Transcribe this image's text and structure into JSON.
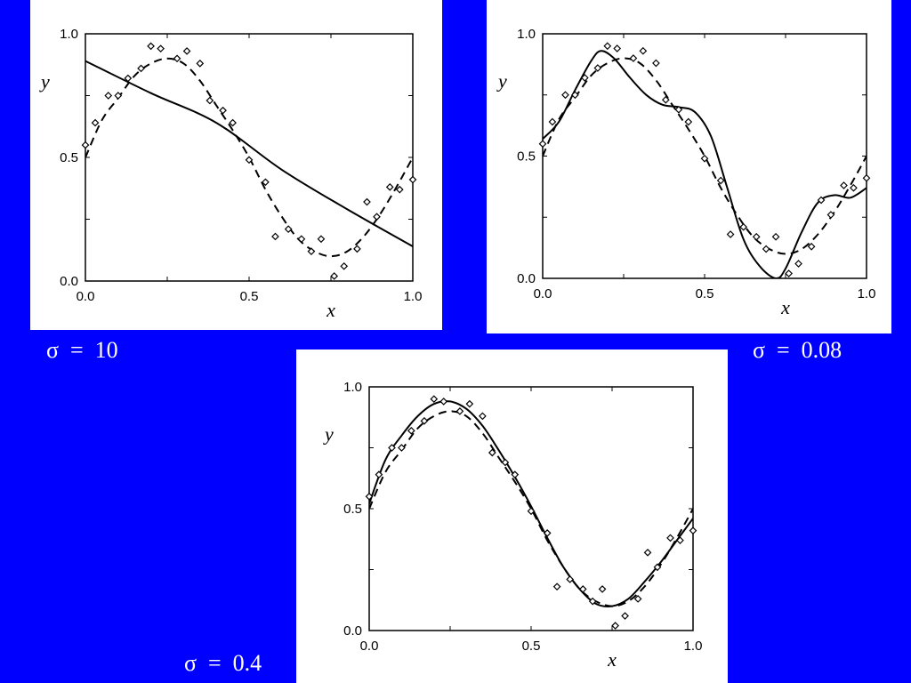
{
  "colors": {
    "background": "#0000ff",
    "panel": "#ffffff",
    "ink": "#000000",
    "label": "#ffffff"
  },
  "panels": [
    {
      "sigma_label": "σ  =  10"
    },
    {
      "sigma_label": "σ  =  0.08"
    },
    {
      "sigma_label": "σ  =  0.4"
    }
  ],
  "chart_data": [
    {
      "type": "line",
      "title": "",
      "xlabel": "x",
      "ylabel": "y",
      "xlim": [
        0.0,
        1.0
      ],
      "ylim": [
        0.0,
        1.0
      ],
      "xticks": [
        "0.0",
        "0.5",
        "1.0"
      ],
      "yticks": [
        "0.0",
        "0.5",
        "1.0"
      ],
      "grid": false,
      "points": {
        "x": [
          0.0,
          0.03,
          0.07,
          0.1,
          0.13,
          0.17,
          0.2,
          0.23,
          0.28,
          0.31,
          0.35,
          0.38,
          0.42,
          0.45,
          0.5,
          0.55,
          0.58,
          0.62,
          0.66,
          0.69,
          0.72,
          0.76,
          0.79,
          0.83,
          0.86,
          0.89,
          0.93,
          0.96,
          1.0
        ],
        "y": [
          0.55,
          0.64,
          0.75,
          0.75,
          0.82,
          0.86,
          0.95,
          0.94,
          0.9,
          0.93,
          0.88,
          0.73,
          0.69,
          0.64,
          0.49,
          0.4,
          0.18,
          0.21,
          0.17,
          0.12,
          0.17,
          0.02,
          0.06,
          0.13,
          0.32,
          0.26,
          0.38,
          0.37,
          0.41
        ]
      },
      "series": [
        {
          "style": "solid",
          "x": [
            0.0,
            0.2,
            0.4,
            0.6,
            0.8,
            1.0
          ],
          "y": [
            0.89,
            0.76,
            0.64,
            0.45,
            0.29,
            0.14
          ]
        },
        {
          "style": "dashed",
          "x": [
            0.0,
            0.05,
            0.1,
            0.15,
            0.2,
            0.25,
            0.3,
            0.35,
            0.4,
            0.45,
            0.5,
            0.55,
            0.6,
            0.65,
            0.7,
            0.75,
            0.8,
            0.85,
            0.9,
            0.95,
            1.0
          ],
          "y": [
            0.5,
            0.65,
            0.74,
            0.83,
            0.88,
            0.9,
            0.88,
            0.81,
            0.71,
            0.61,
            0.5,
            0.37,
            0.26,
            0.17,
            0.12,
            0.1,
            0.12,
            0.18,
            0.27,
            0.38,
            0.5
          ]
        }
      ]
    },
    {
      "type": "line",
      "title": "",
      "xlabel": "x",
      "ylabel": "y",
      "xlim": [
        0.0,
        1.0
      ],
      "ylim": [
        0.0,
        1.0
      ],
      "xticks": [
        "0.0",
        "0.5",
        "1.0"
      ],
      "yticks": [
        "0.0",
        "0.5",
        "1.0"
      ],
      "grid": false,
      "points": {
        "x": [
          0.0,
          0.03,
          0.07,
          0.1,
          0.13,
          0.17,
          0.2,
          0.23,
          0.28,
          0.31,
          0.35,
          0.38,
          0.42,
          0.45,
          0.5,
          0.55,
          0.58,
          0.62,
          0.66,
          0.69,
          0.72,
          0.76,
          0.79,
          0.83,
          0.86,
          0.89,
          0.93,
          0.96,
          1.0
        ],
        "y": [
          0.55,
          0.64,
          0.75,
          0.75,
          0.82,
          0.86,
          0.95,
          0.94,
          0.9,
          0.93,
          0.88,
          0.73,
          0.69,
          0.64,
          0.49,
          0.4,
          0.18,
          0.21,
          0.17,
          0.12,
          0.17,
          0.02,
          0.06,
          0.13,
          0.32,
          0.26,
          0.38,
          0.37,
          0.41
        ]
      },
      "series": [
        {
          "style": "solid",
          "x": [
            0.0,
            0.05,
            0.1,
            0.15,
            0.18,
            0.22,
            0.27,
            0.32,
            0.37,
            0.42,
            0.47,
            0.52,
            0.57,
            0.62,
            0.67,
            0.72,
            0.75,
            0.8,
            0.85,
            0.9,
            0.95,
            1.0
          ],
          "y": [
            0.57,
            0.64,
            0.77,
            0.89,
            0.93,
            0.9,
            0.82,
            0.75,
            0.71,
            0.7,
            0.68,
            0.58,
            0.37,
            0.16,
            0.05,
            0.0,
            0.04,
            0.19,
            0.31,
            0.34,
            0.33,
            0.37
          ]
        },
        {
          "style": "dashed",
          "x": [
            0.0,
            0.05,
            0.1,
            0.15,
            0.2,
            0.25,
            0.3,
            0.35,
            0.4,
            0.45,
            0.5,
            0.55,
            0.6,
            0.65,
            0.7,
            0.75,
            0.8,
            0.85,
            0.9,
            0.95,
            1.0
          ],
          "y": [
            0.5,
            0.65,
            0.74,
            0.83,
            0.88,
            0.9,
            0.88,
            0.81,
            0.71,
            0.61,
            0.5,
            0.37,
            0.26,
            0.17,
            0.12,
            0.1,
            0.12,
            0.18,
            0.27,
            0.38,
            0.5
          ]
        }
      ]
    },
    {
      "type": "line",
      "title": "",
      "xlabel": "x",
      "ylabel": "y",
      "xlim": [
        0.0,
        1.0
      ],
      "ylim": [
        0.0,
        1.0
      ],
      "xticks": [
        "0.0",
        "0.5",
        "1.0"
      ],
      "yticks": [
        "0.0",
        "0.5",
        "1.0"
      ],
      "grid": false,
      "points": {
        "x": [
          0.0,
          0.03,
          0.07,
          0.1,
          0.13,
          0.17,
          0.2,
          0.23,
          0.28,
          0.31,
          0.35,
          0.38,
          0.42,
          0.45,
          0.5,
          0.55,
          0.58,
          0.62,
          0.66,
          0.69,
          0.72,
          0.76,
          0.79,
          0.83,
          0.86,
          0.89,
          0.93,
          0.96,
          1.0
        ],
        "y": [
          0.55,
          0.64,
          0.75,
          0.75,
          0.82,
          0.86,
          0.95,
          0.94,
          0.9,
          0.93,
          0.88,
          0.73,
          0.69,
          0.64,
          0.49,
          0.4,
          0.18,
          0.21,
          0.17,
          0.12,
          0.17,
          0.02,
          0.06,
          0.13,
          0.32,
          0.26,
          0.38,
          0.37,
          0.41
        ]
      },
      "series": [
        {
          "style": "solid",
          "x": [
            0.0,
            0.05,
            0.1,
            0.15,
            0.2,
            0.25,
            0.3,
            0.35,
            0.4,
            0.45,
            0.5,
            0.55,
            0.6,
            0.65,
            0.7,
            0.75,
            0.8,
            0.85,
            0.9,
            0.95,
            1.0
          ],
          "y": [
            0.52,
            0.7,
            0.8,
            0.88,
            0.93,
            0.94,
            0.91,
            0.84,
            0.74,
            0.63,
            0.51,
            0.38,
            0.26,
            0.17,
            0.11,
            0.1,
            0.13,
            0.2,
            0.28,
            0.37,
            0.46
          ]
        },
        {
          "style": "dashed",
          "x": [
            0.0,
            0.05,
            0.1,
            0.15,
            0.2,
            0.25,
            0.3,
            0.35,
            0.4,
            0.45,
            0.5,
            0.55,
            0.6,
            0.65,
            0.7,
            0.75,
            0.8,
            0.85,
            0.9,
            0.95,
            1.0
          ],
          "y": [
            0.5,
            0.65,
            0.74,
            0.83,
            0.88,
            0.9,
            0.88,
            0.81,
            0.71,
            0.61,
            0.5,
            0.37,
            0.26,
            0.17,
            0.12,
            0.1,
            0.12,
            0.18,
            0.27,
            0.38,
            0.5
          ]
        }
      ]
    }
  ]
}
